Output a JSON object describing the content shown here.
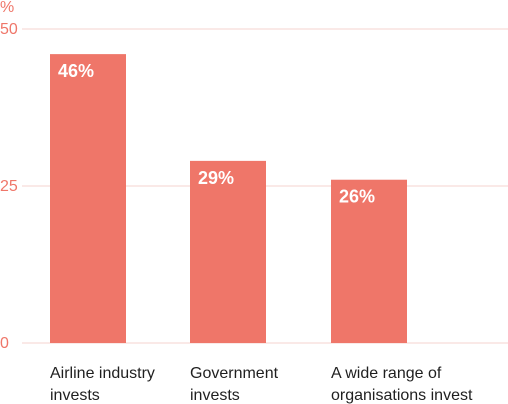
{
  "colors": {
    "bar": "#ef7669",
    "grid": "#f6d3cf",
    "axis_text": "#ef7669",
    "category_text": "#1f1f1f",
    "value_text": "#ffffff",
    "background": "#ffffff"
  },
  "chart_data": {
    "type": "bar",
    "title": "",
    "xlabel": "",
    "ylabel": "%",
    "ylim": [
      0,
      50
    ],
    "yticks": [
      "50",
      "25",
      "0"
    ],
    "grid": true,
    "legend": "none",
    "categories": [
      [
        "Airline industry",
        "invests"
      ],
      [
        "Government",
        "invests"
      ],
      [
        "A wide range of",
        "organisations invest"
      ]
    ],
    "values": [
      46,
      29,
      26
    ],
    "value_labels": [
      "46%",
      "29%",
      "26%"
    ]
  }
}
